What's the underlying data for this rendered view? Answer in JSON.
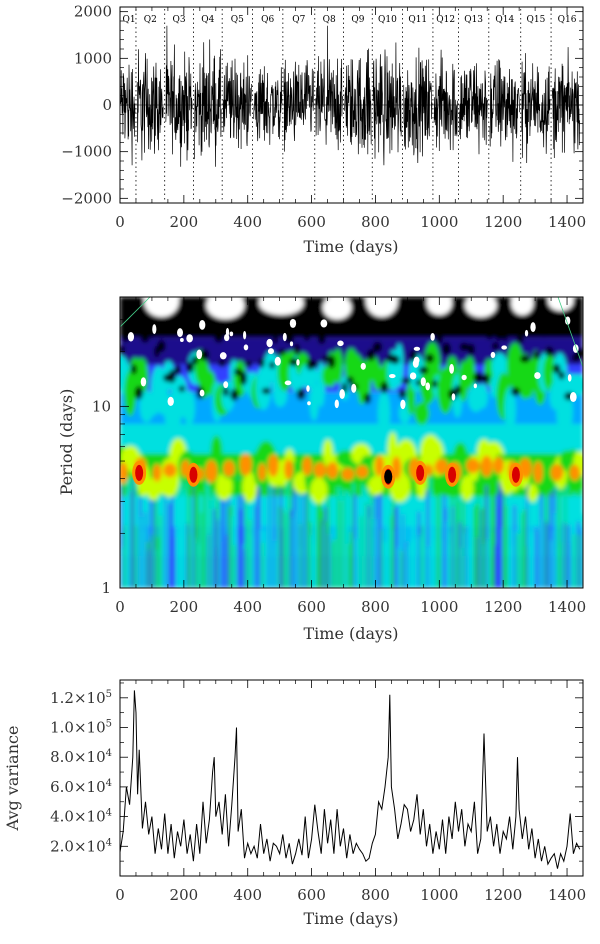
{
  "chart_data": [
    {
      "type": "line",
      "xlabel": "Time (days)",
      "ylabel": "",
      "xlim": [
        0,
        1450
      ],
      "ylim": [
        -2100,
        2100
      ],
      "xticks": [
        "0",
        "200",
        "400",
        "600",
        "800",
        "1000",
        "1200",
        "1400"
      ],
      "yticks": [
        "2000",
        "1000",
        "0",
        "−1000",
        "−2000"
      ],
      "quarters": [
        {
          "label": "Q1",
          "start": 0
        },
        {
          "label": "Q2",
          "start": 50
        },
        {
          "label": "Q3",
          "start": 140
        },
        {
          "label": "Q4",
          "start": 230
        },
        {
          "label": "Q5",
          "start": 320
        },
        {
          "label": "Q6",
          "start": 415
        },
        {
          "label": "Q7",
          "start": 510
        },
        {
          "label": "Q8",
          "start": 610
        },
        {
          "label": "Q9",
          "start": 700
        },
        {
          "label": "Q10",
          "start": 790
        },
        {
          "label": "Q11",
          "start": 885
        },
        {
          "label": "Q12",
          "start": 980
        },
        {
          "label": "Q13",
          "start": 1060
        },
        {
          "label": "Q14",
          "start": 1155
        },
        {
          "label": "Q15",
          "start": 1255
        },
        {
          "label": "Q16",
          "start": 1350
        }
      ],
      "quarter_boundaries": [
        50,
        140,
        230,
        320,
        415,
        510,
        610,
        700,
        790,
        885,
        980,
        1060,
        1155,
        1255,
        1350
      ],
      "series": [
        {
          "amplitude_envelope": [
            [
              0,
              1000
            ],
            [
              30,
              1100
            ],
            [
              50,
              1300
            ],
            [
              100,
              1100
            ],
            [
              150,
              1000
            ],
            [
              200,
              1050
            ],
            [
              300,
              1100
            ],
            [
              400,
              900
            ],
            [
              500,
              850
            ],
            [
              600,
              950
            ],
            [
              700,
              1000
            ],
            [
              800,
              1300
            ],
            [
              900,
              1100
            ],
            [
              1000,
              1000
            ],
            [
              1100,
              1050
            ],
            [
              1200,
              1050
            ],
            [
              1300,
              950
            ],
            [
              1400,
              950
            ],
            [
              1440,
              900
            ]
          ]
        }
      ]
    },
    {
      "type": "heatmap",
      "xlabel": "Time (days)",
      "ylabel": "Period (days)",
      "xlim": [
        0,
        1450
      ],
      "yscale": "log",
      "ylim": [
        1,
        40
      ],
      "xticks": [
        "0",
        "200",
        "400",
        "600",
        "800",
        "1000",
        "1200",
        "1400"
      ],
      "yticks": [
        "1",
        "10"
      ],
      "colormap": [
        "#ffffff",
        "#000000",
        "#1a0a8c",
        "#3040ff",
        "#00a8ff",
        "#00e0e0",
        "#18d818",
        "#c8ff00",
        "#ff9000",
        "#d80000"
      ],
      "dominant_period": 4.2,
      "hotspots": [
        {
          "time": 60,
          "period": 4.3
        },
        {
          "time": 230,
          "period": 4.2
        },
        {
          "time": 840,
          "period": 4.1
        },
        {
          "time": 940,
          "period": 4.3
        },
        {
          "time": 1040,
          "period": 4.2
        },
        {
          "time": 1240,
          "period": 4.2
        }
      ]
    },
    {
      "type": "line",
      "xlabel": "Time (days)",
      "ylabel": "Avg variance",
      "xlim": [
        0,
        1450
      ],
      "ylim": [
        0,
        132000
      ],
      "xticks": [
        "0",
        "200",
        "400",
        "600",
        "800",
        "1000",
        "1200",
        "1400"
      ],
      "yticks": [
        {
          "value": 20000,
          "mantissa": "2.0",
          "exp": "4"
        },
        {
          "value": 40000,
          "mantissa": "4.0",
          "exp": "4"
        },
        {
          "value": 60000,
          "mantissa": "6.0",
          "exp": "4"
        },
        {
          "value": 80000,
          "mantissa": "8.0",
          "exp": "4"
        },
        {
          "value": 100000,
          "mantissa": "1.0",
          "exp": "5"
        },
        {
          "value": 120000,
          "mantissa": "1.2",
          "exp": "5"
        }
      ],
      "series": [
        {
          "x": [
            0,
            10,
            20,
            30,
            40,
            45,
            50,
            55,
            60,
            70,
            80,
            90,
            100,
            110,
            120,
            130,
            140,
            150,
            160,
            170,
            180,
            190,
            200,
            210,
            220,
            230,
            240,
            250,
            260,
            270,
            280,
            290,
            295,
            300,
            310,
            320,
            330,
            340,
            350,
            360,
            365,
            370,
            380,
            390,
            400,
            410,
            420,
            430,
            440,
            450,
            460,
            470,
            480,
            490,
            500,
            510,
            520,
            530,
            540,
            550,
            560,
            570,
            580,
            590,
            600,
            610,
            620,
            630,
            640,
            650,
            660,
            670,
            680,
            690,
            700,
            710,
            720,
            730,
            740,
            750,
            760,
            770,
            780,
            790,
            800,
            810,
            820,
            830,
            840,
            845,
            850,
            860,
            870,
            880,
            890,
            900,
            910,
            920,
            930,
            940,
            950,
            960,
            970,
            980,
            990,
            1000,
            1010,
            1020,
            1030,
            1040,
            1050,
            1060,
            1070,
            1080,
            1090,
            1100,
            1110,
            1120,
            1130,
            1140,
            1150,
            1160,
            1170,
            1180,
            1190,
            1200,
            1210,
            1220,
            1230,
            1240,
            1245,
            1250,
            1260,
            1270,
            1280,
            1290,
            1300,
            1310,
            1320,
            1330,
            1340,
            1350,
            1360,
            1370,
            1380,
            1390,
            1400,
            1410,
            1420,
            1430,
            1440
          ],
          "y": [
            16000,
            30000,
            60000,
            48000,
            80000,
            125000,
            110000,
            55000,
            85000,
            32000,
            50000,
            28000,
            40000,
            15000,
            32000,
            18000,
            42000,
            15000,
            35000,
            12000,
            30000,
            20000,
            38000,
            15000,
            28000,
            10000,
            35000,
            15000,
            50000,
            22000,
            38000,
            70000,
            80000,
            40000,
            50000,
            28000,
            55000,
            20000,
            48000,
            80000,
            100000,
            30000,
            45000,
            12000,
            22000,
            15000,
            20000,
            12000,
            35000,
            15000,
            25000,
            10000,
            22000,
            20000,
            15000,
            28000,
            12000,
            22000,
            8000,
            15000,
            25000,
            14000,
            40000,
            12000,
            25000,
            48000,
            30000,
            15000,
            45000,
            22000,
            38000,
            15000,
            45000,
            20000,
            32000,
            12000,
            28000,
            15000,
            22000,
            18000,
            15000,
            10000,
            12000,
            22000,
            28000,
            50000,
            45000,
            60000,
            80000,
            122000,
            60000,
            45000,
            25000,
            35000,
            48000,
            45000,
            30000,
            38000,
            55000,
            28000,
            45000,
            20000,
            35000,
            15000,
            30000,
            18000,
            38000,
            15000,
            40000,
            25000,
            50000,
            30000,
            45000,
            20000,
            35000,
            30000,
            50000,
            15000,
            25000,
            96000,
            30000,
            40000,
            20000,
            35000,
            15000,
            30000,
            25000,
            40000,
            18000,
            40000,
            80000,
            45000,
            25000,
            40000,
            18000,
            32000,
            12000,
            25000,
            10000,
            20000,
            8000,
            12000,
            15000,
            5000,
            15000,
            10000,
            20000,
            42000,
            15000,
            22000,
            18000
          ]
        }
      ]
    }
  ]
}
